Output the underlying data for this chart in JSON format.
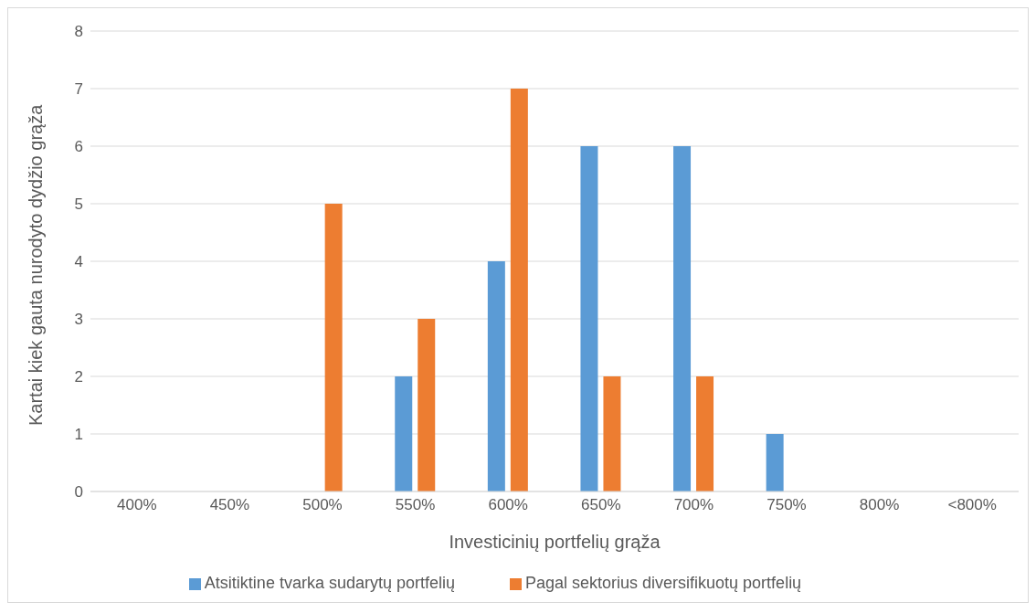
{
  "chart_data": {
    "type": "bar",
    "xlabel": "Investicinių portfelių grąža",
    "ylabel": "Kartai kiek gauta nurodyto dydžio grąža",
    "categories": [
      "400%",
      "450%",
      "500%",
      "550%",
      "600%",
      "650%",
      "700%",
      "750%",
      "800%",
      "<800%"
    ],
    "series": [
      {
        "name": "Atsitiktine tvarka sudarytų portfelių",
        "color": "#5b9bd5",
        "values": [
          0,
          0,
          0,
          2,
          4,
          6,
          6,
          1,
          0,
          0
        ]
      },
      {
        "name": "Pagal sektorius diversifikuotų portfelių",
        "color": "#ed7d31",
        "values": [
          0,
          0,
          5,
          3,
          7,
          2,
          2,
          0,
          0,
          0
        ]
      }
    ],
    "ylim": [
      0,
      8
    ],
    "yticks": [
      0,
      1,
      2,
      3,
      4,
      5,
      6,
      7,
      8
    ],
    "grid": "y",
    "legend": "bottom"
  }
}
